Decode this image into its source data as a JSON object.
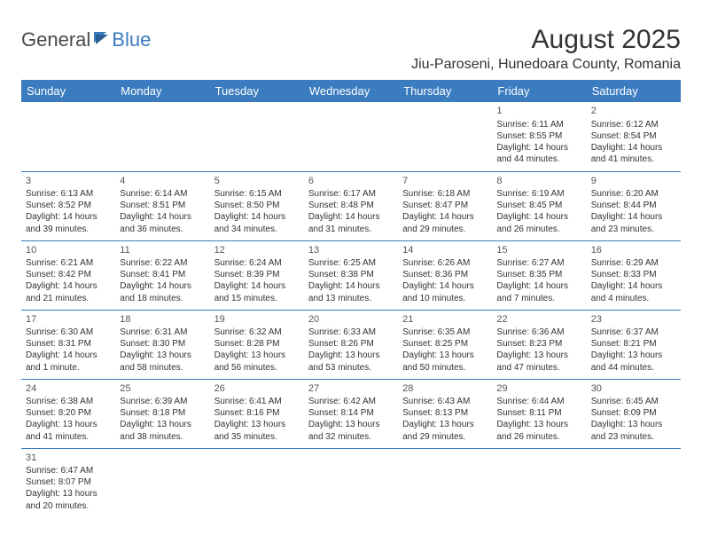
{
  "logo": {
    "word1": "General",
    "word2": "Blue"
  },
  "title": "August 2025",
  "location": "Jiu-Paroseni, Hunedoara County, Romania",
  "colors": {
    "header_bg": "#3b7bbf",
    "header_text": "#ffffff",
    "rule": "#3b7bbf",
    "text": "#333333"
  },
  "weekdays": [
    "Sunday",
    "Monday",
    "Tuesday",
    "Wednesday",
    "Thursday",
    "Friday",
    "Saturday"
  ],
  "weeks": [
    [
      null,
      null,
      null,
      null,
      null,
      {
        "n": "1",
        "sr": "Sunrise: 6:11 AM",
        "ss": "Sunset: 8:55 PM",
        "dl": "Daylight: 14 hours and 44 minutes."
      },
      {
        "n": "2",
        "sr": "Sunrise: 6:12 AM",
        "ss": "Sunset: 8:54 PM",
        "dl": "Daylight: 14 hours and 41 minutes."
      }
    ],
    [
      {
        "n": "3",
        "sr": "Sunrise: 6:13 AM",
        "ss": "Sunset: 8:52 PM",
        "dl": "Daylight: 14 hours and 39 minutes."
      },
      {
        "n": "4",
        "sr": "Sunrise: 6:14 AM",
        "ss": "Sunset: 8:51 PM",
        "dl": "Daylight: 14 hours and 36 minutes."
      },
      {
        "n": "5",
        "sr": "Sunrise: 6:15 AM",
        "ss": "Sunset: 8:50 PM",
        "dl": "Daylight: 14 hours and 34 minutes."
      },
      {
        "n": "6",
        "sr": "Sunrise: 6:17 AM",
        "ss": "Sunset: 8:48 PM",
        "dl": "Daylight: 14 hours and 31 minutes."
      },
      {
        "n": "7",
        "sr": "Sunrise: 6:18 AM",
        "ss": "Sunset: 8:47 PM",
        "dl": "Daylight: 14 hours and 29 minutes."
      },
      {
        "n": "8",
        "sr": "Sunrise: 6:19 AM",
        "ss": "Sunset: 8:45 PM",
        "dl": "Daylight: 14 hours and 26 minutes."
      },
      {
        "n": "9",
        "sr": "Sunrise: 6:20 AM",
        "ss": "Sunset: 8:44 PM",
        "dl": "Daylight: 14 hours and 23 minutes."
      }
    ],
    [
      {
        "n": "10",
        "sr": "Sunrise: 6:21 AM",
        "ss": "Sunset: 8:42 PM",
        "dl": "Daylight: 14 hours and 21 minutes."
      },
      {
        "n": "11",
        "sr": "Sunrise: 6:22 AM",
        "ss": "Sunset: 8:41 PM",
        "dl": "Daylight: 14 hours and 18 minutes."
      },
      {
        "n": "12",
        "sr": "Sunrise: 6:24 AM",
        "ss": "Sunset: 8:39 PM",
        "dl": "Daylight: 14 hours and 15 minutes."
      },
      {
        "n": "13",
        "sr": "Sunrise: 6:25 AM",
        "ss": "Sunset: 8:38 PM",
        "dl": "Daylight: 14 hours and 13 minutes."
      },
      {
        "n": "14",
        "sr": "Sunrise: 6:26 AM",
        "ss": "Sunset: 8:36 PM",
        "dl": "Daylight: 14 hours and 10 minutes."
      },
      {
        "n": "15",
        "sr": "Sunrise: 6:27 AM",
        "ss": "Sunset: 8:35 PM",
        "dl": "Daylight: 14 hours and 7 minutes."
      },
      {
        "n": "16",
        "sr": "Sunrise: 6:29 AM",
        "ss": "Sunset: 8:33 PM",
        "dl": "Daylight: 14 hours and 4 minutes."
      }
    ],
    [
      {
        "n": "17",
        "sr": "Sunrise: 6:30 AM",
        "ss": "Sunset: 8:31 PM",
        "dl": "Daylight: 14 hours and 1 minute."
      },
      {
        "n": "18",
        "sr": "Sunrise: 6:31 AM",
        "ss": "Sunset: 8:30 PM",
        "dl": "Daylight: 13 hours and 58 minutes."
      },
      {
        "n": "19",
        "sr": "Sunrise: 6:32 AM",
        "ss": "Sunset: 8:28 PM",
        "dl": "Daylight: 13 hours and 56 minutes."
      },
      {
        "n": "20",
        "sr": "Sunrise: 6:33 AM",
        "ss": "Sunset: 8:26 PM",
        "dl": "Daylight: 13 hours and 53 minutes."
      },
      {
        "n": "21",
        "sr": "Sunrise: 6:35 AM",
        "ss": "Sunset: 8:25 PM",
        "dl": "Daylight: 13 hours and 50 minutes."
      },
      {
        "n": "22",
        "sr": "Sunrise: 6:36 AM",
        "ss": "Sunset: 8:23 PM",
        "dl": "Daylight: 13 hours and 47 minutes."
      },
      {
        "n": "23",
        "sr": "Sunrise: 6:37 AM",
        "ss": "Sunset: 8:21 PM",
        "dl": "Daylight: 13 hours and 44 minutes."
      }
    ],
    [
      {
        "n": "24",
        "sr": "Sunrise: 6:38 AM",
        "ss": "Sunset: 8:20 PM",
        "dl": "Daylight: 13 hours and 41 minutes."
      },
      {
        "n": "25",
        "sr": "Sunrise: 6:39 AM",
        "ss": "Sunset: 8:18 PM",
        "dl": "Daylight: 13 hours and 38 minutes."
      },
      {
        "n": "26",
        "sr": "Sunrise: 6:41 AM",
        "ss": "Sunset: 8:16 PM",
        "dl": "Daylight: 13 hours and 35 minutes."
      },
      {
        "n": "27",
        "sr": "Sunrise: 6:42 AM",
        "ss": "Sunset: 8:14 PM",
        "dl": "Daylight: 13 hours and 32 minutes."
      },
      {
        "n": "28",
        "sr": "Sunrise: 6:43 AM",
        "ss": "Sunset: 8:13 PM",
        "dl": "Daylight: 13 hours and 29 minutes."
      },
      {
        "n": "29",
        "sr": "Sunrise: 6:44 AM",
        "ss": "Sunset: 8:11 PM",
        "dl": "Daylight: 13 hours and 26 minutes."
      },
      {
        "n": "30",
        "sr": "Sunrise: 6:45 AM",
        "ss": "Sunset: 8:09 PM",
        "dl": "Daylight: 13 hours and 23 minutes."
      }
    ],
    [
      {
        "n": "31",
        "sr": "Sunrise: 6:47 AM",
        "ss": "Sunset: 8:07 PM",
        "dl": "Daylight: 13 hours and 20 minutes."
      },
      null,
      null,
      null,
      null,
      null,
      null
    ]
  ]
}
